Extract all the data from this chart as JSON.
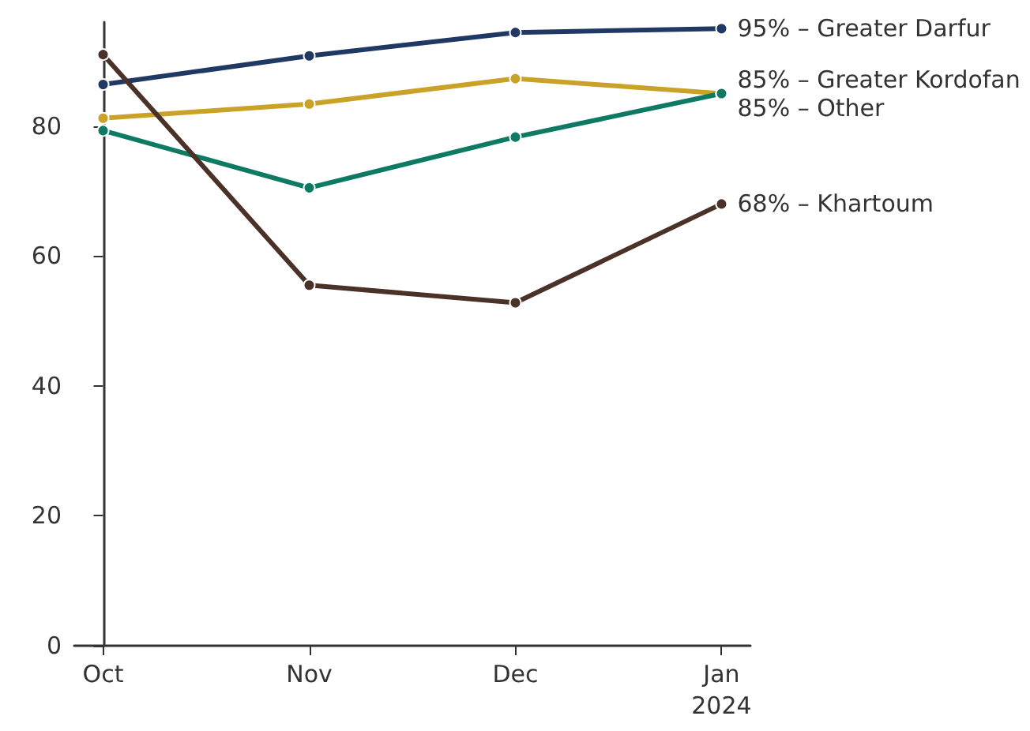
{
  "chart_data": {
    "type": "line",
    "categories": [
      "Oct",
      "Nov",
      "Dec",
      "Jan\n2024"
    ],
    "ylim": [
      0,
      96
    ],
    "yticks": [
      0,
      20,
      40,
      60,
      80
    ],
    "grid": false,
    "marker": "circle",
    "line_style": "solid",
    "series": [
      {
        "color": "#1f3864",
        "values": [
          86.4,
          90.8,
          94.4,
          95
        ],
        "value_labels": [
          null,
          null,
          null,
          "95% – Greater Darfur"
        ]
      },
      {
        "color": "#c9a227",
        "values": [
          81.2,
          83.4,
          87.3,
          85
        ],
        "value_labels": [
          null,
          null,
          null,
          "85% – Greater Kordofan"
        ]
      },
      {
        "color": "#0e7a64",
        "values": [
          79.3,
          70.5,
          78.3,
          85
        ],
        "value_labels": [
          null,
          null,
          null,
          "85% – Other"
        ]
      },
      {
        "color": "#4a3228",
        "values": [
          91,
          55.5,
          52.8,
          68
        ],
        "value_labels": [
          null,
          null,
          null,
          "68% – Khartoum"
        ]
      }
    ]
  }
}
